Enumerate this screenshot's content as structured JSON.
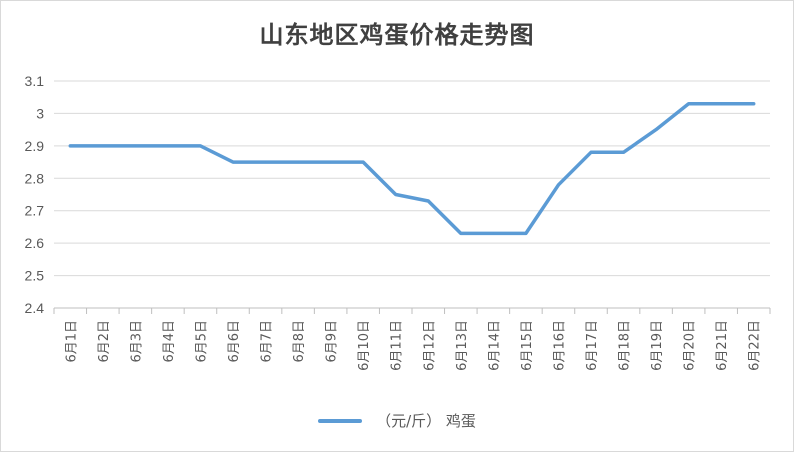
{
  "chart_data": {
    "type": "line",
    "title": "山东地区鸡蛋价格走势图",
    "xlabel": "",
    "ylabel": "",
    "categories": [
      "6月1日",
      "6月2日",
      "6月3日",
      "6月4日",
      "6月5日",
      "6月6日",
      "6月7日",
      "6月8日",
      "6月9日",
      "6月10日",
      "6月11日",
      "6月12日",
      "6月13日",
      "6月14日",
      "6月15日",
      "6月16日",
      "6月17日",
      "6月18日",
      "6月19日",
      "6月20日",
      "6月21日",
      "6月22日"
    ],
    "series": [
      {
        "name": "（元/斤） 鸡蛋",
        "color": "#5b9bd5",
        "values": [
          2.9,
          2.9,
          2.9,
          2.9,
          2.9,
          2.85,
          2.85,
          2.85,
          2.85,
          2.85,
          2.75,
          2.73,
          2.63,
          2.63,
          2.63,
          2.78,
          2.88,
          2.88,
          2.95,
          3.03,
          3.03,
          3.03
        ]
      }
    ],
    "ylim": [
      2.4,
      3.1
    ],
    "yticks": [
      "2.4",
      "2.5",
      "2.6",
      "2.7",
      "2.8",
      "2.9",
      "3",
      "3.1"
    ],
    "grid": true,
    "legend": "bottom"
  }
}
